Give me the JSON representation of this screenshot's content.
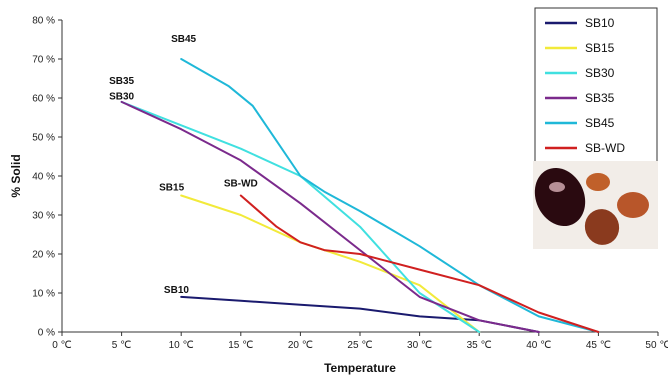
{
  "chart_data": {
    "type": "line",
    "title": "",
    "xlabel": "Temperature",
    "ylabel": "% Solid",
    "xlim": [
      0,
      50
    ],
    "ylim": [
      0,
      80
    ],
    "x_ticks": [
      0,
      5,
      10,
      15,
      20,
      25,
      30,
      35,
      40,
      45,
      50
    ],
    "x_tick_labels": [
      "0 ℃",
      "5 ℃",
      "10 ℃",
      "15 ℃",
      "20 ℃",
      "25 ℃",
      "30 ℃",
      "35 ℃",
      "40 ℃",
      "45 ℃",
      "50 ℃"
    ],
    "y_ticks": [
      0,
      10,
      20,
      30,
      40,
      50,
      60,
      70,
      80
    ],
    "y_tick_labels": [
      "0 %",
      "10 %",
      "20 %",
      "30 %",
      "40 %",
      "50 %",
      "60 %",
      "70 %",
      "80 %"
    ],
    "grid": false,
    "legend_position": "top-right",
    "series": [
      {
        "name": "SB10",
        "color": "#1a1a6e",
        "points": [
          [
            10,
            9
          ],
          [
            15,
            8
          ],
          [
            20,
            7
          ],
          [
            25,
            6
          ],
          [
            30,
            4
          ],
          [
            35,
            3
          ],
          [
            40,
            0
          ]
        ]
      },
      {
        "name": "SB15",
        "color": "#f2ea3a",
        "points": [
          [
            10,
            35
          ],
          [
            15,
            30
          ],
          [
            20,
            23
          ],
          [
            25,
            18
          ],
          [
            30,
            12
          ],
          [
            35,
            0
          ]
        ]
      },
      {
        "name": "SB30",
        "color": "#40e0e0",
        "points": [
          [
            5,
            59
          ],
          [
            10,
            53
          ],
          [
            15,
            47
          ],
          [
            20,
            40
          ],
          [
            25,
            27
          ],
          [
            30,
            10
          ],
          [
            35,
            0
          ]
        ]
      },
      {
        "name": "SB35",
        "color": "#7b2a8c",
        "points": [
          [
            5,
            59
          ],
          [
            10,
            52
          ],
          [
            15,
            44
          ],
          [
            20,
            33
          ],
          [
            25,
            21
          ],
          [
            30,
            9
          ],
          [
            35,
            3
          ],
          [
            40,
            0
          ]
        ]
      },
      {
        "name": "SB45",
        "color": "#1fb8d8",
        "points": [
          [
            10,
            70
          ],
          [
            14,
            63
          ],
          [
            16,
            58
          ],
          [
            18,
            49
          ],
          [
            20,
            40
          ],
          [
            22,
            36
          ],
          [
            25,
            31
          ],
          [
            30,
            22
          ],
          [
            35,
            12
          ],
          [
            40,
            4
          ],
          [
            45,
            0
          ]
        ]
      },
      {
        "name": "SB-WD",
        "color": "#d02020",
        "points": [
          [
            15,
            35
          ],
          [
            18,
            27
          ],
          [
            20,
            23
          ],
          [
            22,
            21
          ],
          [
            25,
            20
          ],
          [
            30,
            16
          ],
          [
            35,
            12
          ],
          [
            40,
            5
          ],
          [
            45,
            0
          ]
        ]
      }
    ],
    "annotations": [
      {
        "text": "SB45",
        "x": 10.2,
        "y": 74.3
      },
      {
        "text": "SB35",
        "x": 5.0,
        "y": 63.6
      },
      {
        "text": "SB30",
        "x": 5.0,
        "y": 59.6
      },
      {
        "text": "SB15",
        "x": 9.2,
        "y": 36.3
      },
      {
        "text": "SB-WD",
        "x": 15.0,
        "y": 37.3
      },
      {
        "text": "SB10",
        "x": 9.6,
        "y": 10.0
      }
    ]
  }
}
